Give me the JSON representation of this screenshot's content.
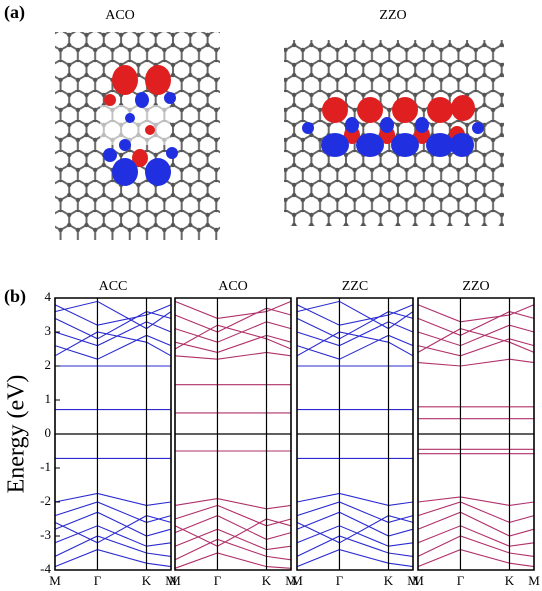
{
  "panel_labels": [
    "(a)",
    "(b)"
  ],
  "structures": [
    {
      "label": "ACO"
    },
    {
      "label": "ZZO"
    }
  ],
  "chart_data": [
    {
      "type": "line",
      "title": "ACC",
      "color": "#2a2ad0",
      "ylabel": "Energy (eV)",
      "ylim": [
        -4,
        4
      ],
      "yticks": [
        -4,
        -3,
        -2,
        -1,
        0,
        1,
        2,
        3,
        4
      ],
      "xlim": [
        0,
        2.732
      ],
      "xticks": [
        {
          "value": 0,
          "label": "M"
        },
        {
          "value": 1,
          "label": "Γ"
        },
        {
          "value": 2.155,
          "label": "K"
        },
        {
          "value": 2.732,
          "label": "M"
        }
      ],
      "x": [
        0,
        1,
        2.155,
        2.732
      ],
      "bands": [
        [
          0.72,
          0.72,
          0.72,
          0.72
        ],
        [
          -0.72,
          -0.72,
          -0.72,
          -0.72
        ],
        [
          2.0,
          2.0,
          2.0,
          2.0
        ],
        [
          2.6,
          2.2,
          2.9,
          2.6
        ],
        [
          3.0,
          2.6,
          3.3,
          3.0
        ],
        [
          3.4,
          2.8,
          3.6,
          3.4
        ],
        [
          3.8,
          3.2,
          3.5,
          3.8
        ],
        [
          2.3,
          3.0,
          2.7,
          2.3
        ],
        [
          3.6,
          3.9,
          3.1,
          3.6
        ],
        [
          -2.0,
          -1.75,
          -2.1,
          -2.0
        ],
        [
          -2.4,
          -2.0,
          -2.6,
          -2.4
        ],
        [
          -2.8,
          -2.3,
          -3.0,
          -2.8
        ],
        [
          -3.2,
          -2.7,
          -3.3,
          -3.2
        ],
        [
          -3.6,
          -3.0,
          -3.5,
          -3.6
        ],
        [
          -3.9,
          -3.4,
          -3.8,
          -3.9
        ],
        [
          -2.6,
          -3.2,
          -2.4,
          -2.6
        ]
      ]
    },
    {
      "type": "line",
      "title": "ACO",
      "color": "#b0306a",
      "ylim": [
        -4,
        4
      ],
      "xlim": [
        0,
        2.732
      ],
      "xticks": [
        {
          "value": 0,
          "label": "M"
        },
        {
          "value": 1,
          "label": "Γ"
        },
        {
          "value": 2.155,
          "label": "K"
        },
        {
          "value": 2.732,
          "label": "M"
        }
      ],
      "x": [
        0,
        1,
        2.155,
        2.732
      ],
      "bands": [
        [
          1.45,
          1.45,
          1.45,
          1.45
        ],
        [
          0.62,
          0.62,
          0.62,
          0.62
        ],
        [
          -0.5,
          -0.5,
          -0.5,
          -0.5
        ],
        [
          2.3,
          2.2,
          2.4,
          2.3
        ],
        [
          2.7,
          2.4,
          2.9,
          2.7
        ],
        [
          3.1,
          2.7,
          3.3,
          3.1
        ],
        [
          3.5,
          3.0,
          3.7,
          3.5
        ],
        [
          3.9,
          3.4,
          3.6,
          3.9
        ],
        [
          2.5,
          3.2,
          2.8,
          2.5
        ],
        [
          -2.1,
          -1.9,
          -2.2,
          -2.1
        ],
        [
          -2.5,
          -2.1,
          -2.7,
          -2.5
        ],
        [
          -2.9,
          -2.4,
          -3.1,
          -2.9
        ],
        [
          -3.3,
          -2.8,
          -3.4,
          -3.3
        ],
        [
          -3.7,
          -3.1,
          -3.6,
          -3.7
        ],
        [
          -3.95,
          -3.5,
          -3.9,
          -3.95
        ],
        [
          -2.7,
          -3.3,
          -2.5,
          -2.7
        ]
      ]
    },
    {
      "type": "line",
      "title": "ZZC",
      "color": "#2a2ad0",
      "ylim": [
        -4,
        4
      ],
      "xlim": [
        0,
        2.732
      ],
      "xticks": [
        {
          "value": 0,
          "label": "M"
        },
        {
          "value": 1,
          "label": "Γ"
        },
        {
          "value": 2.155,
          "label": "K"
        },
        {
          "value": 2.732,
          "label": "M"
        }
      ],
      "x": [
        0,
        1,
        2.155,
        2.732
      ],
      "bands": [
        [
          0.72,
          0.72,
          0.72,
          0.72
        ],
        [
          -0.72,
          -0.72,
          -0.72,
          -0.72
        ],
        [
          2.0,
          2.0,
          2.0,
          2.0
        ],
        [
          2.6,
          2.2,
          2.9,
          2.6
        ],
        [
          3.0,
          2.6,
          3.3,
          3.0
        ],
        [
          3.4,
          2.8,
          3.6,
          3.4
        ],
        [
          3.8,
          3.2,
          3.5,
          3.8
        ],
        [
          2.3,
          3.0,
          2.7,
          2.3
        ],
        [
          3.6,
          3.9,
          3.1,
          3.6
        ],
        [
          -2.0,
          -1.75,
          -2.1,
          -2.0
        ],
        [
          -2.4,
          -2.0,
          -2.6,
          -2.4
        ],
        [
          -2.8,
          -2.3,
          -3.0,
          -2.8
        ],
        [
          -3.2,
          -2.7,
          -3.3,
          -3.2
        ],
        [
          -3.6,
          -3.0,
          -3.5,
          -3.6
        ],
        [
          -3.9,
          -3.4,
          -3.8,
          -3.9
        ],
        [
          -2.6,
          -3.2,
          -2.4,
          -2.6
        ]
      ]
    },
    {
      "type": "line",
      "title": "ZZO",
      "color": "#b0306a",
      "ylim": [
        -4,
        4
      ],
      "xlim": [
        0,
        2.732
      ],
      "xticks": [
        {
          "value": 0,
          "label": "M"
        },
        {
          "value": 1,
          "label": "Γ"
        },
        {
          "value": 2.155,
          "label": "K"
        },
        {
          "value": 2.732,
          "label": "M"
        }
      ],
      "x": [
        0,
        1,
        2.155,
        2.732
      ],
      "bands": [
        [
          0.8,
          0.8,
          0.8,
          0.8
        ],
        [
          0.45,
          0.45,
          0.45,
          0.45
        ],
        [
          -0.45,
          -0.45,
          -0.45,
          -0.45
        ],
        [
          -0.58,
          -0.58,
          -0.58,
          -0.58
        ],
        [
          2.1,
          2.0,
          2.2,
          2.1
        ],
        [
          2.6,
          2.3,
          2.8,
          2.6
        ],
        [
          3.0,
          2.6,
          3.2,
          3.0
        ],
        [
          3.4,
          2.9,
          3.6,
          3.4
        ],
        [
          3.8,
          3.3,
          3.5,
          3.8
        ],
        [
          2.4,
          3.1,
          2.7,
          2.4
        ],
        [
          -2.0,
          -1.85,
          -2.1,
          -2.0
        ],
        [
          -2.4,
          -2.0,
          -2.6,
          -2.4
        ],
        [
          -2.8,
          -2.3,
          -3.0,
          -2.8
        ],
        [
          -3.2,
          -2.7,
          -3.3,
          -3.2
        ],
        [
          -3.6,
          -3.0,
          -3.5,
          -3.6
        ],
        [
          -3.9,
          -3.4,
          -3.8,
          -3.9
        ]
      ]
    }
  ]
}
